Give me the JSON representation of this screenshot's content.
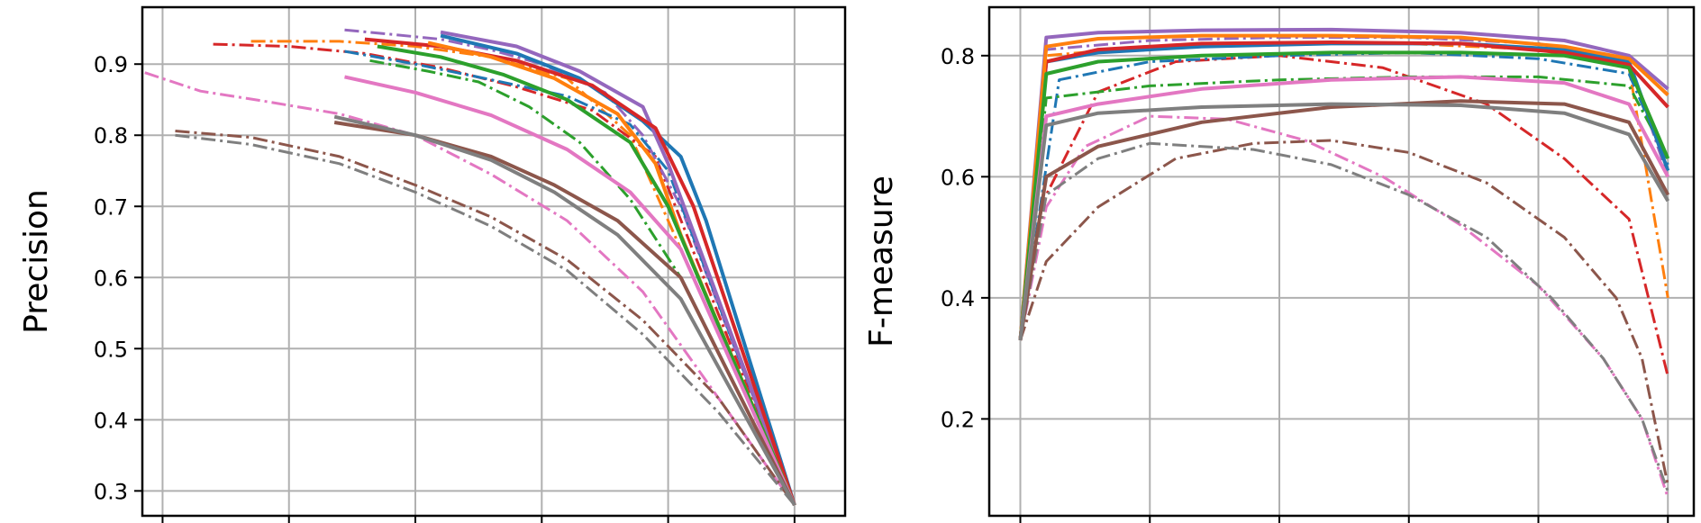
{
  "chart_data": [
    {
      "type": "line",
      "title": "",
      "xlabel": "",
      "ylabel": "Precision",
      "xlim": [
        -0.08,
        2.7
      ],
      "ylim": [
        0.265,
        0.98
      ],
      "xticks": [
        0,
        0.5,
        1,
        1.5,
        2,
        2.5
      ],
      "xtick_labels": [
        "",
        "",
        "",
        "",
        "",
        ""
      ],
      "yticks": [
        0.3,
        0.4,
        0.5,
        0.6,
        0.7,
        0.8,
        0.9
      ],
      "ytick_labels": [
        "0.3",
        "0.4",
        "0.5",
        "0.6",
        "0.7",
        "0.8",
        "0.9"
      ],
      "grid": true,
      "series": [
        {
          "color": "#ff7f0e",
          "style": "dashdot",
          "x": [
            0.35,
            0.7,
            1.0,
            1.3,
            1.6,
            1.85,
            2.0,
            2.5
          ],
          "y": [
            0.932,
            0.932,
            0.925,
            0.91,
            0.88,
            0.8,
            0.68,
            0.28
          ]
        },
        {
          "color": "#d62728",
          "style": "dashdot",
          "x": [
            0.2,
            0.5,
            0.8,
            1.1,
            1.4,
            1.7,
            1.95,
            2.5
          ],
          "y": [
            0.928,
            0.925,
            0.915,
            0.895,
            0.868,
            0.835,
            0.77,
            0.28
          ]
        },
        {
          "color": "#9467bd",
          "style": "dashdot",
          "x": [
            0.72,
            0.9,
            1.1,
            1.3,
            1.5,
            1.75,
            1.9,
            2.05,
            2.5
          ],
          "y": [
            0.948,
            0.942,
            0.935,
            0.92,
            0.9,
            0.86,
            0.8,
            0.7,
            0.28
          ]
        },
        {
          "color": "#1f77b4",
          "style": "dashdot",
          "x": [
            0.72,
            1.0,
            1.3,
            1.6,
            1.85,
            2.0,
            2.5
          ],
          "y": [
            0.918,
            0.9,
            0.878,
            0.855,
            0.815,
            0.75,
            0.28
          ]
        },
        {
          "color": "#2ca02c",
          "style": "dashdot",
          "x": [
            0.82,
            1.05,
            1.25,
            1.45,
            1.65,
            1.85,
            2.05,
            2.5
          ],
          "y": [
            0.905,
            0.89,
            0.875,
            0.84,
            0.79,
            0.71,
            0.6,
            0.28
          ]
        },
        {
          "color": "#e377c2",
          "style": "dashdot",
          "x": [
            -0.07,
            0.15,
            0.4,
            0.7,
            1.0,
            1.3,
            1.6,
            1.9,
            2.2,
            2.5
          ],
          "y": [
            0.888,
            0.862,
            0.848,
            0.83,
            0.8,
            0.745,
            0.68,
            0.58,
            0.43,
            0.28
          ]
        },
        {
          "color": "#8c564b",
          "style": "dashdot",
          "x": [
            0.05,
            0.35,
            0.7,
            1.0,
            1.3,
            1.6,
            1.9,
            2.2,
            2.5
          ],
          "y": [
            0.806,
            0.797,
            0.77,
            0.73,
            0.685,
            0.625,
            0.54,
            0.43,
            0.28
          ]
        },
        {
          "color": "#7f7f7f",
          "style": "dashdot",
          "x": [
            0.05,
            0.35,
            0.7,
            1.0,
            1.3,
            1.6,
            1.9,
            2.2,
            2.5
          ],
          "y": [
            0.8,
            0.787,
            0.76,
            0.72,
            0.672,
            0.61,
            0.52,
            0.41,
            0.28
          ]
        },
        {
          "color": "#1f77b4",
          "style": "solid",
          "x": [
            1.1,
            1.4,
            1.65,
            1.9,
            2.05,
            2.15,
            2.5
          ],
          "y": [
            0.94,
            0.915,
            0.88,
            0.82,
            0.77,
            0.68,
            0.28
          ]
        },
        {
          "color": "#9467bd",
          "style": "solid",
          "x": [
            1.1,
            1.4,
            1.65,
            1.9,
            2.0,
            2.5
          ],
          "y": [
            0.945,
            0.925,
            0.89,
            0.84,
            0.76,
            0.28
          ]
        },
        {
          "color": "#d62728",
          "style": "solid",
          "x": [
            0.8,
            1.1,
            1.4,
            1.7,
            1.95,
            2.1,
            2.5
          ],
          "y": [
            0.935,
            0.925,
            0.905,
            0.87,
            0.81,
            0.7,
            0.28
          ]
        },
        {
          "color": "#ff7f0e",
          "style": "solid",
          "x": [
            1.05,
            1.3,
            1.55,
            1.8,
            1.95,
            2.05,
            2.5
          ],
          "y": [
            0.93,
            0.91,
            0.88,
            0.83,
            0.76,
            0.66,
            0.28
          ]
        },
        {
          "color": "#2ca02c",
          "style": "solid",
          "x": [
            0.85,
            1.1,
            1.35,
            1.6,
            1.85,
            2.0,
            2.5
          ],
          "y": [
            0.925,
            0.91,
            0.885,
            0.85,
            0.79,
            0.7,
            0.28
          ]
        },
        {
          "color": "#e377c2",
          "style": "solid",
          "x": [
            0.72,
            1.0,
            1.3,
            1.6,
            1.85,
            2.05,
            2.5
          ],
          "y": [
            0.882,
            0.86,
            0.828,
            0.78,
            0.72,
            0.64,
            0.28
          ]
        },
        {
          "color": "#8c564b",
          "style": "solid",
          "x": [
            0.68,
            1.0,
            1.3,
            1.55,
            1.8,
            2.05,
            2.5
          ],
          "y": [
            0.818,
            0.8,
            0.77,
            0.73,
            0.68,
            0.6,
            0.28
          ]
        },
        {
          "color": "#7f7f7f",
          "style": "solid",
          "x": [
            0.68,
            1.0,
            1.3,
            1.55,
            1.8,
            2.05,
            2.5
          ],
          "y": [
            0.826,
            0.8,
            0.765,
            0.72,
            0.66,
            0.57,
            0.28
          ]
        }
      ]
    },
    {
      "type": "line",
      "title": "",
      "xlabel": "",
      "ylabel": "F-measure",
      "xlim": [
        -0.12,
        2.6
      ],
      "ylim": [
        0.04,
        0.88
      ],
      "xticks": [
        0,
        0.5,
        1,
        1.5,
        2,
        2.5
      ],
      "xtick_labels": [
        "",
        "",
        "",
        "",
        "",
        ""
      ],
      "yticks": [
        0.2,
        0.4,
        0.6,
        0.8
      ],
      "ytick_labels": [
        "0.2",
        "0.4",
        "0.6",
        "0.8"
      ],
      "grid": true,
      "series": [
        {
          "color": "#ff7f0e",
          "style": "dashdot",
          "x": [
            0,
            0.1,
            0.5,
            1.0,
            1.5,
            2.0,
            2.35,
            2.5
          ],
          "y": [
            0.33,
            0.8,
            0.815,
            0.82,
            0.82,
            0.81,
            0.78,
            0.4
          ]
        },
        {
          "color": "#d62728",
          "style": "dashdot",
          "x": [
            0,
            0.1,
            0.3,
            0.6,
            1.0,
            1.4,
            1.8,
            2.1,
            2.35,
            2.5
          ],
          "y": [
            0.33,
            0.57,
            0.74,
            0.79,
            0.8,
            0.78,
            0.72,
            0.63,
            0.53,
            0.27
          ]
        },
        {
          "color": "#9467bd",
          "style": "dashdot",
          "x": [
            0,
            0.1,
            0.5,
            1.0,
            1.5,
            2.0,
            2.35,
            2.5
          ],
          "y": [
            0.33,
            0.81,
            0.825,
            0.83,
            0.83,
            0.82,
            0.79,
            0.6
          ]
        },
        {
          "color": "#1f77b4",
          "style": "dashdot",
          "x": [
            0,
            0.15,
            0.5,
            1.0,
            1.5,
            2.0,
            2.35,
            2.5
          ],
          "y": [
            0.33,
            0.76,
            0.79,
            0.8,
            0.805,
            0.795,
            0.77,
            0.62
          ]
        },
        {
          "color": "#2ca02c",
          "style": "dashdot",
          "x": [
            0,
            0.1,
            0.5,
            1.0,
            1.5,
            2.0,
            2.35,
            2.5
          ],
          "y": [
            0.33,
            0.73,
            0.75,
            0.76,
            0.765,
            0.765,
            0.75,
            0.63
          ]
        },
        {
          "color": "#e377c2",
          "style": "dashdot",
          "x": [
            0,
            0.1,
            0.25,
            0.5,
            0.8,
            1.1,
            1.4,
            1.7,
            2.0,
            2.25,
            2.4,
            2.5
          ],
          "y": [
            0.33,
            0.55,
            0.65,
            0.7,
            0.695,
            0.66,
            0.6,
            0.52,
            0.42,
            0.3,
            0.2,
            0.07
          ]
        },
        {
          "color": "#8c564b",
          "style": "dashdot",
          "x": [
            0,
            0.1,
            0.3,
            0.6,
            0.9,
            1.2,
            1.5,
            1.8,
            2.1,
            2.3,
            2.4,
            2.5
          ],
          "y": [
            0.33,
            0.46,
            0.55,
            0.63,
            0.655,
            0.66,
            0.64,
            0.59,
            0.5,
            0.4,
            0.3,
            0.09
          ]
        },
        {
          "color": "#7f7f7f",
          "style": "dashdot",
          "x": [
            0,
            0.1,
            0.3,
            0.5,
            0.9,
            1.2,
            1.5,
            1.8,
            2.05,
            2.25,
            2.4,
            2.5
          ],
          "y": [
            0.33,
            0.57,
            0.63,
            0.655,
            0.645,
            0.62,
            0.57,
            0.5,
            0.4,
            0.3,
            0.2,
            0.08
          ]
        },
        {
          "color": "#1f77b4",
          "style": "solid",
          "x": [
            0,
            0.1,
            0.3,
            0.7,
            1.2,
            1.7,
            2.1,
            2.35,
            2.5
          ],
          "y": [
            0.33,
            0.79,
            0.805,
            0.815,
            0.82,
            0.82,
            0.81,
            0.79,
            0.61
          ]
        },
        {
          "color": "#9467bd",
          "style": "solid",
          "x": [
            0,
            0.1,
            0.3,
            0.7,
            1.2,
            1.7,
            2.1,
            2.35,
            2.5
          ],
          "y": [
            0.33,
            0.83,
            0.838,
            0.842,
            0.843,
            0.838,
            0.825,
            0.8,
            0.745
          ]
        },
        {
          "color": "#d62728",
          "style": "solid",
          "x": [
            0,
            0.1,
            0.3,
            0.7,
            1.2,
            1.7,
            2.1,
            2.35,
            2.5
          ],
          "y": [
            0.33,
            0.79,
            0.81,
            0.82,
            0.822,
            0.82,
            0.805,
            0.785,
            0.715
          ]
        },
        {
          "color": "#ff7f0e",
          "style": "solid",
          "x": [
            0,
            0.1,
            0.3,
            0.7,
            1.2,
            1.7,
            2.1,
            2.35,
            2.5
          ],
          "y": [
            0.33,
            0.815,
            0.828,
            0.833,
            0.833,
            0.83,
            0.815,
            0.795,
            0.735
          ]
        },
        {
          "color": "#2ca02c",
          "style": "solid",
          "x": [
            0,
            0.1,
            0.3,
            0.7,
            1.2,
            1.7,
            2.1,
            2.35,
            2.5
          ],
          "y": [
            0.33,
            0.77,
            0.79,
            0.8,
            0.805,
            0.805,
            0.8,
            0.78,
            0.63
          ]
        },
        {
          "color": "#e377c2",
          "style": "solid",
          "x": [
            0,
            0.1,
            0.3,
            0.7,
            1.2,
            1.7,
            2.1,
            2.35,
            2.5
          ],
          "y": [
            0.33,
            0.7,
            0.72,
            0.745,
            0.76,
            0.765,
            0.755,
            0.72,
            0.6
          ]
        },
        {
          "color": "#8c564b",
          "style": "solid",
          "x": [
            0,
            0.1,
            0.3,
            0.7,
            1.2,
            1.7,
            2.1,
            2.35,
            2.5
          ],
          "y": [
            0.33,
            0.6,
            0.65,
            0.69,
            0.715,
            0.725,
            0.72,
            0.69,
            0.57
          ]
        },
        {
          "color": "#7f7f7f",
          "style": "solid",
          "x": [
            0,
            0.1,
            0.3,
            0.7,
            1.2,
            1.7,
            2.1,
            2.35,
            2.5
          ],
          "y": [
            0.33,
            0.685,
            0.705,
            0.715,
            0.72,
            0.718,
            0.705,
            0.67,
            0.56
          ]
        }
      ]
    }
  ]
}
